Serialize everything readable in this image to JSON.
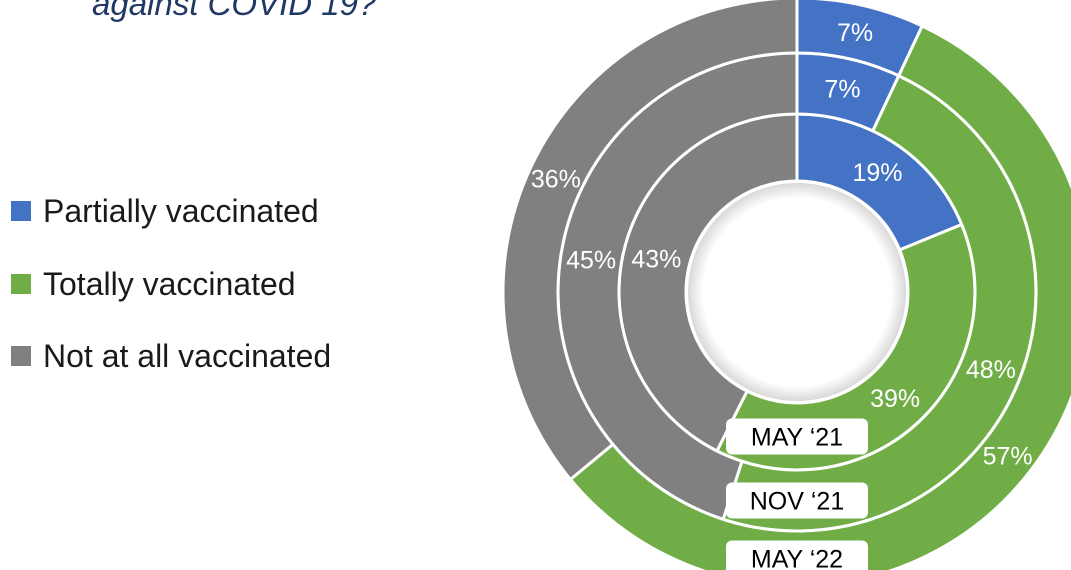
{
  "title": "against COVID 19?",
  "legend": {
    "items": [
      {
        "label": "Partially vaccinated",
        "color": "#4472c4"
      },
      {
        "label": "Totally vaccinated",
        "color": "#70ad47"
      },
      {
        "label": "Not at all vaccinated",
        "color": "#808080"
      }
    ]
  },
  "chart_data": {
    "type": "donut",
    "title": "",
    "categories": [
      "Partially vaccinated",
      "Totally vaccinated",
      "Not at all vaccinated"
    ],
    "colors": [
      "#4472c4",
      "#70ad47",
      "#808080"
    ],
    "legend_position": "left",
    "rings": [
      {
        "name": "MAY ‘21",
        "position": "inner",
        "values": [
          19,
          39,
          43
        ],
        "labels": [
          "19%",
          "39%",
          "43%"
        ]
      },
      {
        "name": "NOV ‘21",
        "position": "middle",
        "values": [
          7,
          48,
          45
        ],
        "labels": [
          "7%",
          "48%",
          "45%"
        ]
      },
      {
        "name": "MAY ‘22",
        "position": "outer",
        "values": [
          7,
          57,
          36
        ],
        "labels": [
          "7%",
          "57%",
          "36%"
        ]
      }
    ]
  }
}
